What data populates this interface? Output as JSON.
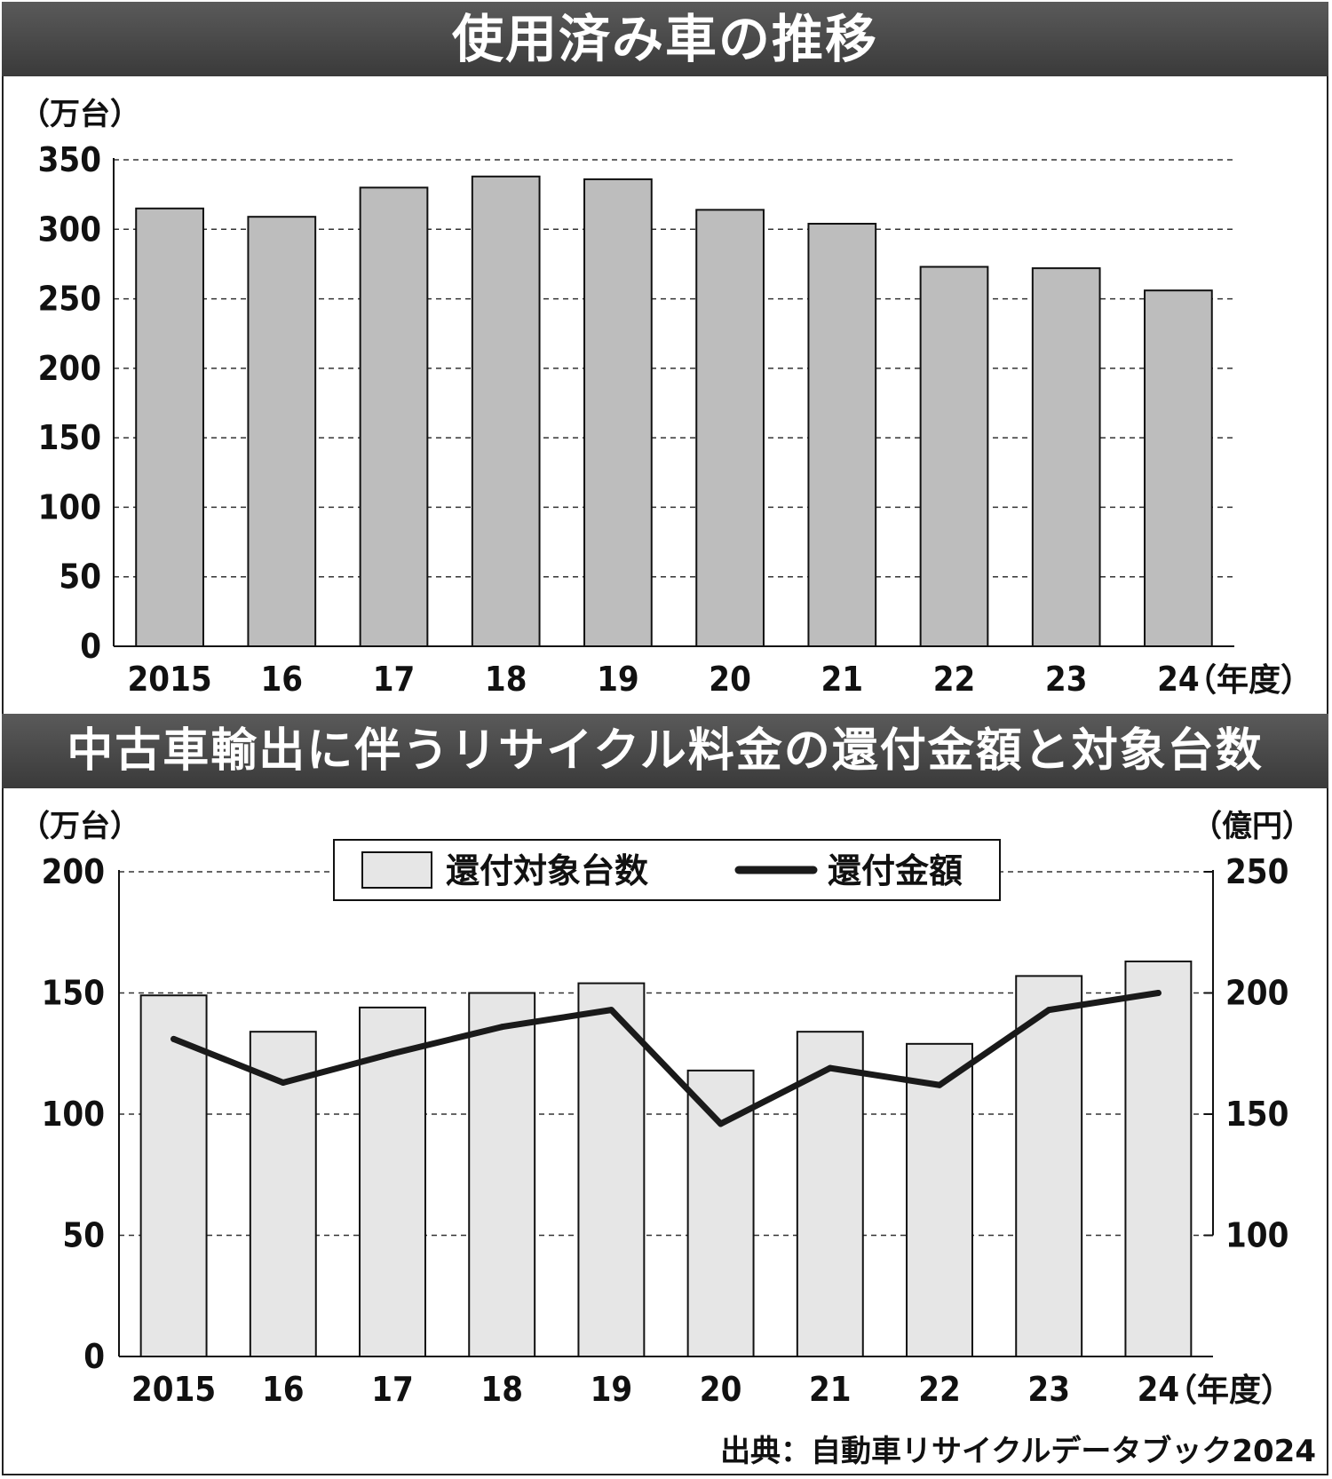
{
  "chart_data": [
    {
      "type": "bar",
      "title": "使用済み車の推移",
      "ylabel": "（万台）",
      "xunit": "（年度）",
      "ylim": [
        0,
        350
      ],
      "yticks": [
        0,
        50,
        100,
        150,
        200,
        250,
        300,
        350
      ],
      "grid": true,
      "categories": [
        "2015",
        "16",
        "17",
        "18",
        "19",
        "20",
        "21",
        "22",
        "23",
        "24"
      ],
      "values": [
        315,
        309,
        330,
        338,
        336,
        314,
        304,
        273,
        272,
        256
      ],
      "bar_color": "#bdbdbd"
    },
    {
      "type": "bar+line",
      "title": "中古車輸出に伴うリサイクル料金の還付金額と対象台数",
      "ylabel": "（万台）",
      "y2label": "（億円）",
      "xunit": "（年度）",
      "ylim": [
        0,
        200
      ],
      "yticks": [
        0,
        50,
        100,
        150,
        200
      ],
      "y2lim": [
        100,
        250
      ],
      "y2ticks": [
        100,
        150,
        200,
        250
      ],
      "grid": true,
      "legend_position": "top-center",
      "categories": [
        "2015",
        "16",
        "17",
        "18",
        "19",
        "20",
        "21",
        "22",
        "23",
        "24"
      ],
      "series": [
        {
          "name": "還付対象台数",
          "type": "bar",
          "axis": "left",
          "values": [
            149,
            134,
            144,
            150,
            154,
            118,
            134,
            129,
            157,
            163
          ],
          "color": "#e6e6e6"
        },
        {
          "name": "還付金額",
          "type": "line",
          "axis": "right",
          "values": [
            181,
            163,
            175,
            186,
            193,
            146,
            169,
            162,
            193,
            200
          ],
          "color": "#1a1a1a"
        }
      ]
    }
  ],
  "source": "出典：自動車リサイクルデータブック2024"
}
